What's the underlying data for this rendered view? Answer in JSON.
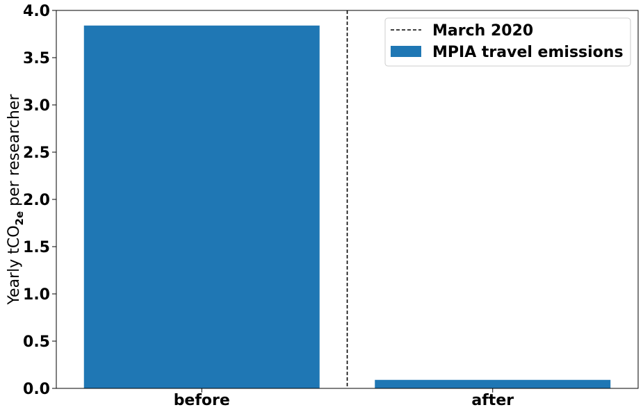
{
  "chart_data": {
    "type": "bar",
    "categories": [
      "before",
      "after"
    ],
    "series": [
      {
        "name": "MPIA travel emissions",
        "values": [
          3.84,
          0.09
        ],
        "color": "#1f77b4"
      }
    ],
    "ylabel": {
      "main": "Yearly tCO",
      "sub": "2e",
      "rest": " per researcher"
    },
    "ylim": [
      0,
      4.0
    ],
    "yticks": [
      "0.0",
      "0.5",
      "1.0",
      "1.5",
      "2.0",
      "2.5",
      "3.0",
      "3.5",
      "4.0"
    ],
    "grid": false,
    "legend_position": "top-right",
    "annotations": [
      {
        "type": "vline",
        "label": "March 2020",
        "style": "dashed",
        "color": "#000000",
        "x_position": "between before and after"
      }
    ]
  }
}
